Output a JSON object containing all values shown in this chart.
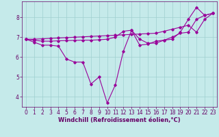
{
  "xlabel": "Windchill (Refroidissement éolien,°C)",
  "background_color": "#c5eaea",
  "grid_color": "#9fcfcf",
  "line_color": "#990099",
  "ylim": [
    3.5,
    8.8
  ],
  "xlim": [
    -0.5,
    23.5
  ],
  "yticks": [
    4,
    5,
    6,
    7,
    8
  ],
  "xticks": [
    0,
    1,
    2,
    3,
    4,
    5,
    6,
    7,
    8,
    9,
    10,
    11,
    12,
    13,
    14,
    15,
    16,
    17,
    18,
    19,
    20,
    21,
    22,
    23
  ],
  "series1_x": [
    0,
    1,
    2,
    3,
    4,
    5,
    6,
    7,
    8,
    9,
    10,
    11,
    12,
    13,
    14,
    15,
    16,
    17,
    18,
    19,
    20,
    21,
    22,
    23
  ],
  "series1_y": [
    6.9,
    6.75,
    6.6,
    6.6,
    6.55,
    5.9,
    5.75,
    5.75,
    4.65,
    5.0,
    3.7,
    4.6,
    6.3,
    7.35,
    6.6,
    6.65,
    6.8,
    6.85,
    6.9,
    7.25,
    7.9,
    8.5,
    8.1,
    8.2
  ],
  "series2_x": [
    0,
    1,
    2,
    3,
    4,
    5,
    6,
    7,
    8,
    9,
    10,
    11,
    12,
    13,
    14,
    15,
    16,
    17,
    18,
    19,
    20,
    21,
    22,
    23
  ],
  "series2_y": [
    6.9,
    6.85,
    6.8,
    6.8,
    6.82,
    6.83,
    6.84,
    6.85,
    6.85,
    6.87,
    6.9,
    7.0,
    7.3,
    7.35,
    6.9,
    6.7,
    6.7,
    6.85,
    7.0,
    7.2,
    7.25,
    7.9,
    8.1,
    8.2
  ],
  "series3_x": [
    0,
    1,
    2,
    3,
    4,
    5,
    6,
    7,
    8,
    9,
    10,
    11,
    12,
    13,
    14,
    15,
    16,
    17,
    18,
    19,
    20,
    21,
    22,
    23
  ],
  "series3_y": [
    6.9,
    6.9,
    6.92,
    6.94,
    6.96,
    6.98,
    7.0,
    7.02,
    7.04,
    7.06,
    7.08,
    7.1,
    7.12,
    7.14,
    7.16,
    7.18,
    7.2,
    7.3,
    7.4,
    7.5,
    7.6,
    7.25,
    7.9,
    8.2
  ],
  "font_color": "#660066",
  "tick_fontsize": 5.5,
  "xlabel_fontsize": 6.0,
  "marker": "D",
  "marker_size": 1.8,
  "linewidth": 0.8
}
